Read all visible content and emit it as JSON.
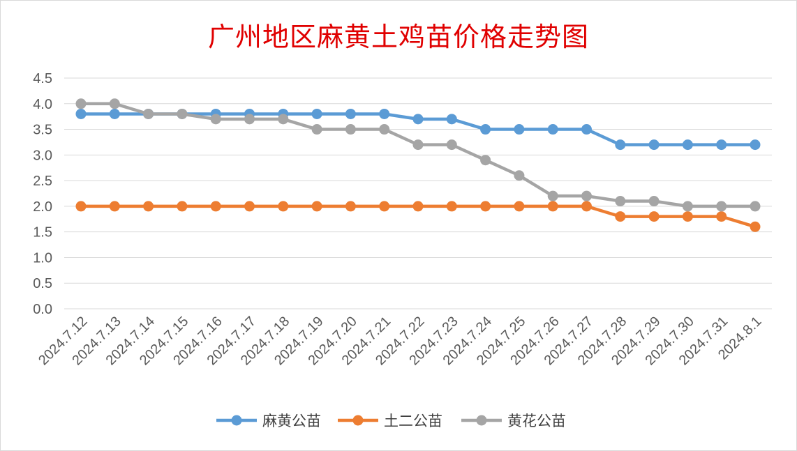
{
  "chart_data": {
    "type": "line",
    "title": "广州地区麻黄土鸡苗价格走势图",
    "xlabel": "",
    "ylabel": "",
    "ylim": [
      0,
      4.5
    ],
    "yticks": [
      "0.0",
      "0.5",
      "1.0",
      "1.5",
      "2.0",
      "2.5",
      "3.0",
      "3.5",
      "4.0",
      "4.5"
    ],
    "grid": true,
    "legend_position": "bottom",
    "categories": [
      "2024.7.12",
      "2024.7.13",
      "2024.7.14",
      "2024.7.15",
      "2024.7.16",
      "2024.7.17",
      "2024.7.18",
      "2024.7.19",
      "2024.7.20",
      "2024.7.21",
      "2024.7.22",
      "2024.7.23",
      "2024.7.24",
      "2024.7.25",
      "2024.7.26",
      "2024.7.27",
      "2024.7.28",
      "2024.7.29",
      "2024.7.30",
      "2024.7.31",
      "2024.8.1"
    ],
    "series": [
      {
        "name": "麻黄公苗",
        "color": "#5b9bd5",
        "values": [
          3.8,
          3.8,
          3.8,
          3.8,
          3.8,
          3.8,
          3.8,
          3.8,
          3.8,
          3.8,
          3.7,
          3.7,
          3.5,
          3.5,
          3.5,
          3.5,
          3.2,
          3.2,
          3.2,
          3.2,
          3.2
        ]
      },
      {
        "name": "土二公苗",
        "color": "#ed7d31",
        "values": [
          2.0,
          2.0,
          2.0,
          2.0,
          2.0,
          2.0,
          2.0,
          2.0,
          2.0,
          2.0,
          2.0,
          2.0,
          2.0,
          2.0,
          2.0,
          2.0,
          1.8,
          1.8,
          1.8,
          1.8,
          1.6
        ]
      },
      {
        "name": "黄花公苗",
        "color": "#a5a5a5",
        "values": [
          4.0,
          4.0,
          3.8,
          3.8,
          3.7,
          3.7,
          3.7,
          3.5,
          3.5,
          3.5,
          3.2,
          3.2,
          2.9,
          2.6,
          2.2,
          2.2,
          2.1,
          2.1,
          2.0,
          2.0,
          2.0
        ]
      }
    ]
  }
}
